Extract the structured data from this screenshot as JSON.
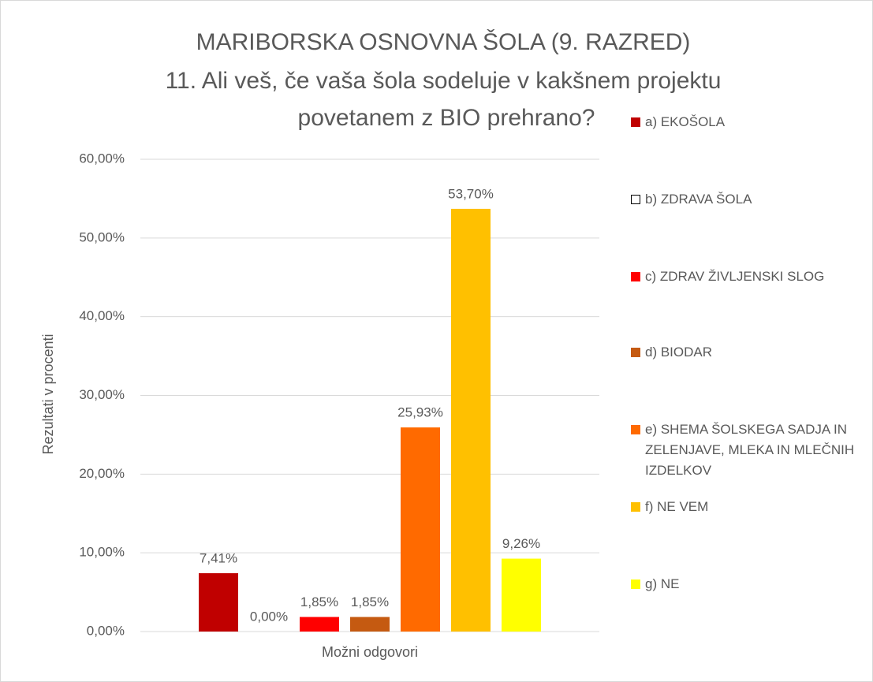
{
  "chart_data": {
    "type": "bar",
    "title": [
      "MARIBORSKA OSNOVNA ŠOLA (9. RAZRED)",
      "11. Ali veš, če vaša šola sodeluje v kakšnem projektu",
      "povetanem z BIO prehrano?"
    ],
    "categories": [
      "Možni odgovori"
    ],
    "ylabel": "Rezultati v procenti",
    "series": [
      {
        "name": "a) EKOŠOLA",
        "color": "#c00000",
        "values": [
          7.41
        ],
        "value_labels": [
          "7,41%"
        ]
      },
      {
        "name": "b) ZDRAVA ŠOLA",
        "color": "#ffffff",
        "edgecolor": "#000000",
        "values": [
          0
        ],
        "value_labels": [
          "0,00%"
        ]
      },
      {
        "name": "c) ZDRAV ŽIVLJENSKI SLOG",
        "color": "#ff0000",
        "values": [
          1.85
        ],
        "value_labels": [
          "1,85%"
        ]
      },
      {
        "name": "d) BIODAR",
        "color": "#c55a11",
        "values": [
          1.85
        ],
        "value_labels": [
          "1,85%"
        ]
      },
      {
        "name": "e) SHEMA ŠOLSKEGA SADJA IN ZELENJAVE, MLEKA IN MLEČNIH IZDELKOV",
        "color": "#ff6a00",
        "values": [
          25.93
        ],
        "value_labels": [
          "25,93%"
        ]
      },
      {
        "name": "f) NE VEM",
        "color": "#ffc000",
        "values": [
          53.7
        ],
        "value_labels": [
          "53,70%"
        ]
      },
      {
        "name": "g) NE",
        "color": "#ffff00",
        "values": [
          9.26
        ],
        "value_labels": [
          "9,26%"
        ]
      }
    ],
    "ylim": [
      0,
      60
    ],
    "yticks": [
      {
        "value": 0,
        "label": "0,00%"
      },
      {
        "value": 10,
        "label": "10,00%"
      },
      {
        "value": 20,
        "label": "20,00%"
      },
      {
        "value": 30,
        "label": "30,00%"
      },
      {
        "value": 40,
        "label": "40,00%"
      },
      {
        "value": 50,
        "label": "50,00%"
      },
      {
        "value": 60,
        "label": "60,00%"
      }
    ],
    "grid": true,
    "legend": "right"
  }
}
